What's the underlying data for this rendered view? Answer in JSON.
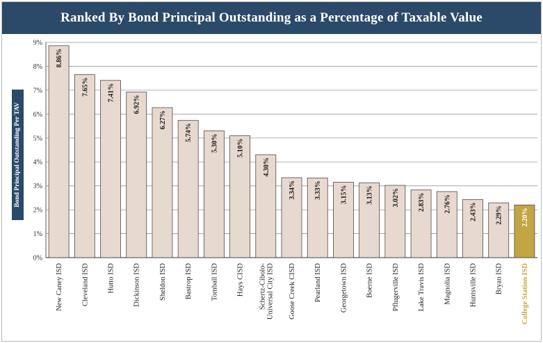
{
  "chart_data": {
    "type": "bar",
    "title": "Ranked By Bond Principal Outstanding as a Percentage of Taxable Value",
    "xlabel": "",
    "ylabel": "Bond Principal Outstanding Per TAV",
    "ylim": [
      0,
      9
    ],
    "yticks": [
      "0%",
      "1%",
      "2%",
      "3%",
      "4%",
      "5%",
      "6%",
      "7%",
      "8%",
      "9%"
    ],
    "grid": true,
    "categories": [
      "New Caney ISD",
      "Cleveland ISD",
      "Hutto ISD",
      "Dickinson ISD",
      "Sheldon ISD",
      "Bastrop ISD",
      "Tomball ISD",
      "Hays CISD",
      "Schertz-Cibolo-Universal City ISD",
      "Goose Creek CISD",
      "Pearland ISD",
      "Georgetown ISD",
      "Boerne ISD",
      "Pflugerville ISD",
      "Lake Travis ISD",
      "Magnolia ISD",
      "Huntsville ISD",
      "Bryan ISD",
      "College Station ISD"
    ],
    "category_lines": [
      [
        "New Caney ISD"
      ],
      [
        "Cleveland ISD"
      ],
      [
        "Hutto ISD"
      ],
      [
        "Dickinson ISD"
      ],
      [
        "Sheldon ISD"
      ],
      [
        "Bastrop ISD"
      ],
      [
        "Tomball ISD"
      ],
      [
        "Hays CISD"
      ],
      [
        "Schertz-Cibolo-",
        "Universal City ISD"
      ],
      [
        "Goose Creek CISD"
      ],
      [
        "Pearland ISD"
      ],
      [
        "Georgetown ISD"
      ],
      [
        "Boerne ISD"
      ],
      [
        "Pflugerville ISD"
      ],
      [
        "Lake Travis ISD"
      ],
      [
        "Magnolia ISD"
      ],
      [
        "Huntsville ISD"
      ],
      [
        "Bryan ISD"
      ],
      [
        "College Station ISD"
      ]
    ],
    "values": [
      8.86,
      7.65,
      7.41,
      6.92,
      6.27,
      5.74,
      5.3,
      5.1,
      4.3,
      3.34,
      3.33,
      3.15,
      3.13,
      3.02,
      2.83,
      2.76,
      2.43,
      2.29,
      2.2
    ],
    "data_labels": [
      "8.86%",
      "7.65%",
      "7.41%",
      "6.92%",
      "6.27%",
      "5.74%",
      "5.30%",
      "5.10%",
      "4.30%",
      "3.34%",
      "3.33%",
      "3.15%",
      "3.13%",
      "3.02%",
      "2.83%",
      "2.76%",
      "2.43%",
      "2.29%",
      "2.20%"
    ],
    "highlight": "College Station ISD",
    "colors": {
      "bar": "#e8d9d0",
      "bar_border": "#4a4a4a",
      "highlight_bar": "#c4a544",
      "highlight_label": "#c9a73e",
      "title_bg": "#2b4a6a",
      "grid": "#9a9a9a"
    }
  }
}
